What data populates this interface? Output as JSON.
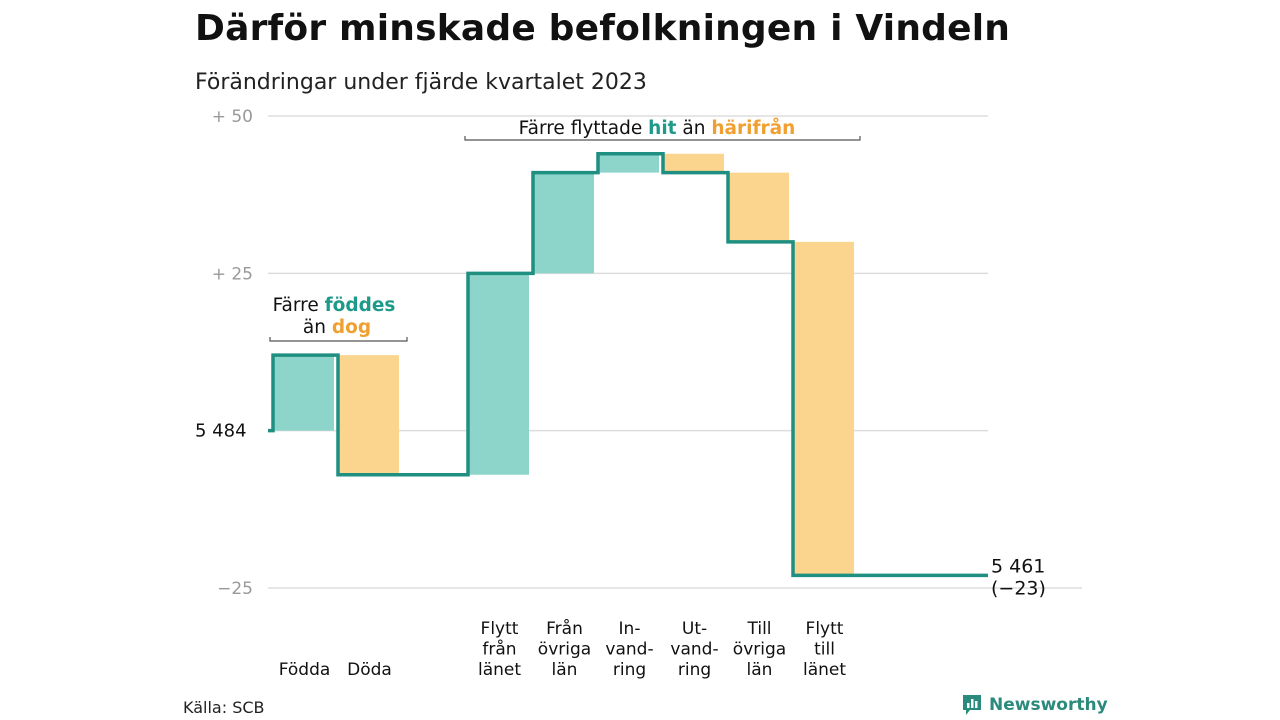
{
  "page": {
    "title": "Därför minskade befolkningen i Vindeln",
    "subtitle": "Förändringar under fjärde kvartalet 2023",
    "source": "Källa: SCB",
    "brand": "Newsworthy"
  },
  "colors": {
    "increase": "#8dd5cb",
    "decrease": "#fbd58e",
    "line": "#1e8f80",
    "accent_teal": "#1e9a8a",
    "accent_orange": "#f0a030",
    "grid": "#dddddd",
    "tick_text": "#999999"
  },
  "chart_data": {
    "type": "waterfall",
    "start_value": 5484,
    "start_label": "5 484",
    "end_value": 5461,
    "end_label": "5 461",
    "end_change_label": "(−23)",
    "ylim": [
      -25,
      50
    ],
    "grid": true,
    "y_ticks": [
      {
        "value": 50,
        "label": "+  50"
      },
      {
        "value": 25,
        "label": "+  25"
      },
      {
        "value": 0,
        "label": "5  484"
      },
      {
        "value": -25,
        "label": "−25"
      }
    ],
    "steps": [
      {
        "category": "Födda",
        "label_lines": [
          "Födda"
        ],
        "value": 12,
        "kind": "in"
      },
      {
        "category": "Döda",
        "label_lines": [
          "Döda"
        ],
        "value": -19,
        "kind": "out"
      },
      {
        "category": "",
        "label_lines": [],
        "value": 0,
        "kind": "gap"
      },
      {
        "category": "Flytt från länet",
        "label_lines": [
          "Flytt",
          "från",
          "länet"
        ],
        "value": 32,
        "kind": "in"
      },
      {
        "category": "Från övriga län",
        "label_lines": [
          "Från",
          "övriga",
          "län"
        ],
        "value": 16,
        "kind": "in"
      },
      {
        "category": "Invandring",
        "label_lines": [
          "In-",
          "vand-",
          "ring"
        ],
        "value": 3,
        "kind": "in"
      },
      {
        "category": "Utvandring",
        "label_lines": [
          "Ut-",
          "vand-",
          "ring"
        ],
        "value": -3,
        "kind": "out"
      },
      {
        "category": "Till övriga län",
        "label_lines": [
          "Till",
          "övriga",
          "län"
        ],
        "value": -11,
        "kind": "out"
      },
      {
        "category": "Flytt till länet",
        "label_lines": [
          "Flytt",
          "till",
          "länet"
        ],
        "value": -53,
        "kind": "out"
      }
    ],
    "annotations": [
      {
        "id": "births",
        "prefix": "Färre ",
        "highlight1": "föddes",
        "line2_prefix": "än ",
        "highlight2": "dog"
      },
      {
        "id": "moves",
        "prefix": "Färre flyttade ",
        "highlight1": "hit",
        "middle": "än ",
        "highlight2": "härifrån"
      }
    ]
  }
}
